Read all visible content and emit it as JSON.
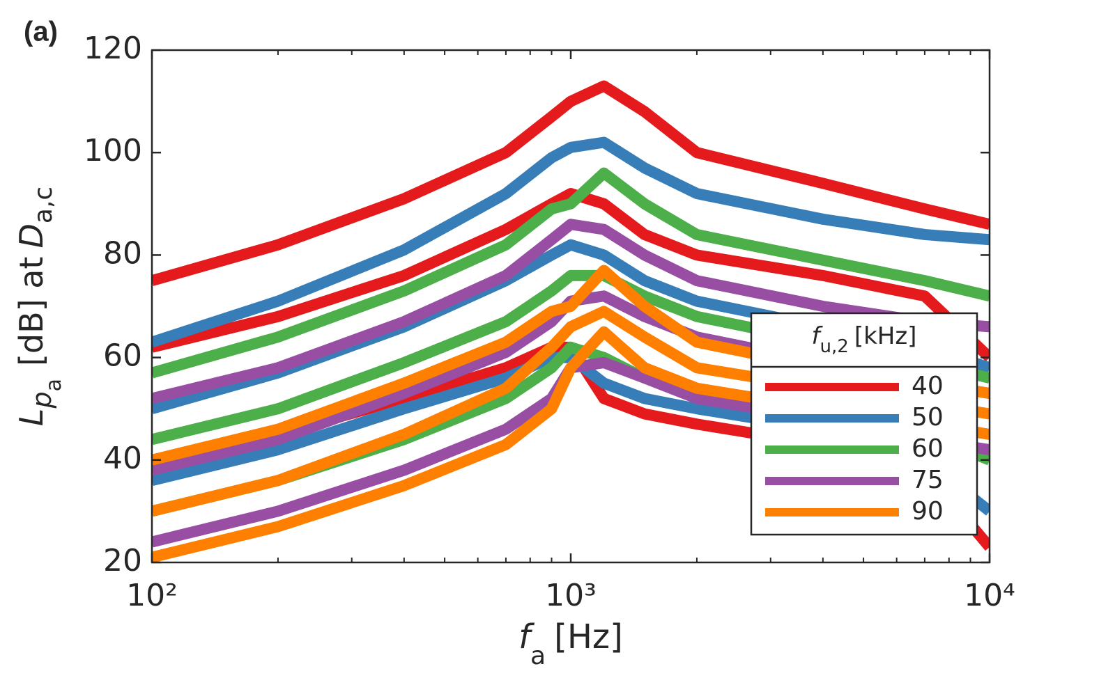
{
  "chart_data": {
    "type": "line",
    "panel_label": "(a)",
    "xlabel_parts": [
      "f",
      "a",
      "[Hz]"
    ],
    "ylabel_parts": [
      "L",
      "p",
      "a",
      "[dB] at",
      "D",
      "a,c"
    ],
    "legend_title_parts": [
      "f",
      "u,2",
      "[kHz]"
    ],
    "x": [
      100,
      200,
      400,
      700,
      900,
      1000,
      1200,
      1500,
      2000,
      4000,
      7000,
      10000
    ],
    "log_x": true,
    "xlim": [
      100,
      10000
    ],
    "xticks": [
      {
        "value": 100,
        "label": "10²"
      },
      {
        "value": 1000,
        "label": "10³"
      },
      {
        "value": 10000,
        "label": "10⁴"
      }
    ],
    "xminor_ticks": [
      200,
      300,
      400,
      500,
      600,
      700,
      800,
      900,
      2000,
      3000,
      4000,
      5000,
      6000,
      7000,
      8000,
      9000
    ],
    "ylim": [
      20,
      120
    ],
    "yticks": [
      20,
      40,
      60,
      80,
      100,
      120
    ],
    "legend_position": "lower right",
    "series": [
      {
        "name": "40",
        "color": "#e41a1c",
        "lines": [
          [
            75,
            82,
            91,
            100,
            107,
            110,
            113,
            108,
            100,
            94,
            89,
            86
          ],
          [
            62,
            68,
            76,
            85,
            90,
            92,
            90,
            84,
            80,
            76,
            72,
            60
          ],
          [
            38,
            45,
            52,
            58,
            62,
            62,
            52,
            49,
            47,
            43,
            38,
            23
          ]
        ]
      },
      {
        "name": "50",
        "color": "#377eb8",
        "lines": [
          [
            63,
            71,
            81,
            92,
            99,
            101,
            102,
            97,
            92,
            87,
            84,
            83
          ],
          [
            50,
            57,
            66,
            75,
            80,
            82,
            80,
            75,
            71,
            66,
            62,
            58
          ],
          [
            36,
            42,
            50,
            56,
            60,
            60,
            55,
            52,
            50,
            46,
            40,
            30
          ]
        ]
      },
      {
        "name": "60",
        "color": "#4daf4a",
        "lines": [
          [
            57,
            64,
            73,
            82,
            89,
            90,
            96,
            90,
            84,
            79,
            75,
            72
          ],
          [
            44,
            50,
            59,
            67,
            73,
            76,
            76,
            72,
            68,
            63,
            59,
            56
          ],
          [
            30,
            36,
            44,
            52,
            58,
            62,
            60,
            56,
            53,
            49,
            45,
            40
          ]
        ]
      },
      {
        "name": "75",
        "color": "#984ea3",
        "lines": [
          [
            52,
            58,
            67,
            76,
            83,
            86,
            85,
            80,
            75,
            70,
            67,
            66
          ],
          [
            38,
            44,
            53,
            61,
            67,
            71,
            72,
            68,
            64,
            59,
            55,
            53
          ],
          [
            24,
            30,
            38,
            46,
            52,
            58,
            59,
            56,
            52,
            48,
            44,
            42
          ]
        ]
      },
      {
        "name": "90",
        "color": "#ff7f00",
        "lines": [
          [
            40,
            46,
            55,
            63,
            69,
            70,
            77,
            70,
            63,
            58,
            55,
            53
          ],
          [
            30,
            36,
            45,
            54,
            62,
            66,
            69,
            64,
            58,
            54,
            51,
            49
          ],
          [
            21,
            27,
            35,
            43,
            50,
            58,
            65,
            58,
            54,
            50,
            47,
            45
          ]
        ]
      }
    ]
  }
}
